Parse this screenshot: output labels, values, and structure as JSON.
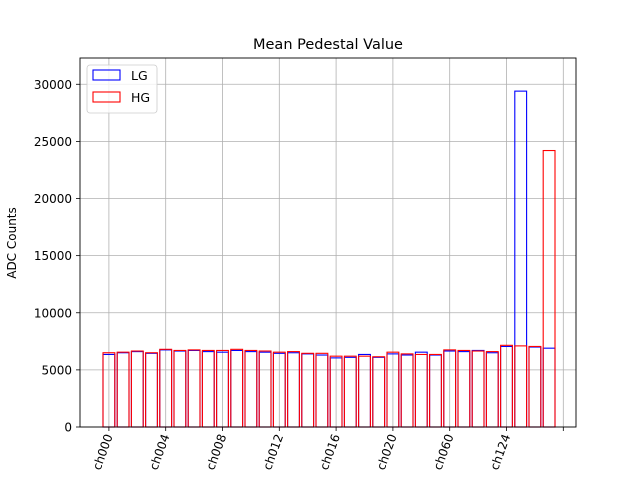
{
  "chart_data": {
    "type": "bar",
    "title": "Mean Pedestal Value",
    "xlabel": "",
    "ylabel": "ADC Counts",
    "ylim": [
      0,
      32300
    ],
    "yticks": [
      0,
      5000,
      10000,
      15000,
      20000,
      25000,
      30000
    ],
    "xtick_labels": [
      "ch000",
      "ch004",
      "ch008",
      "ch012",
      "ch016",
      "ch020",
      "ch060",
      "ch124",
      ""
    ],
    "grid": true,
    "legend_position": "top-left",
    "series": [
      {
        "name": "LG",
        "color": "#0000ff",
        "values": [
          6350,
          6500,
          6600,
          6450,
          6750,
          6650,
          6700,
          6600,
          6550,
          6700,
          6600,
          6550,
          6450,
          6500,
          6400,
          6300,
          6050,
          6100,
          6350,
          6100,
          6400,
          6300,
          6550,
          6300,
          6650,
          6600,
          6700,
          6500,
          7050,
          29400,
          7000,
          6900
        ]
      },
      {
        "name": "HG",
        "color": "#ff0000",
        "values": [
          6500,
          6550,
          6650,
          6500,
          6800,
          6700,
          6750,
          6700,
          6700,
          6800,
          6700,
          6650,
          6550,
          6600,
          6450,
          6450,
          6200,
          6200,
          6200,
          6150,
          6550,
          6400,
          6350,
          6350,
          6750,
          6700,
          6650,
          6600,
          7150,
          7100,
          7050,
          24200
        ]
      }
    ]
  }
}
